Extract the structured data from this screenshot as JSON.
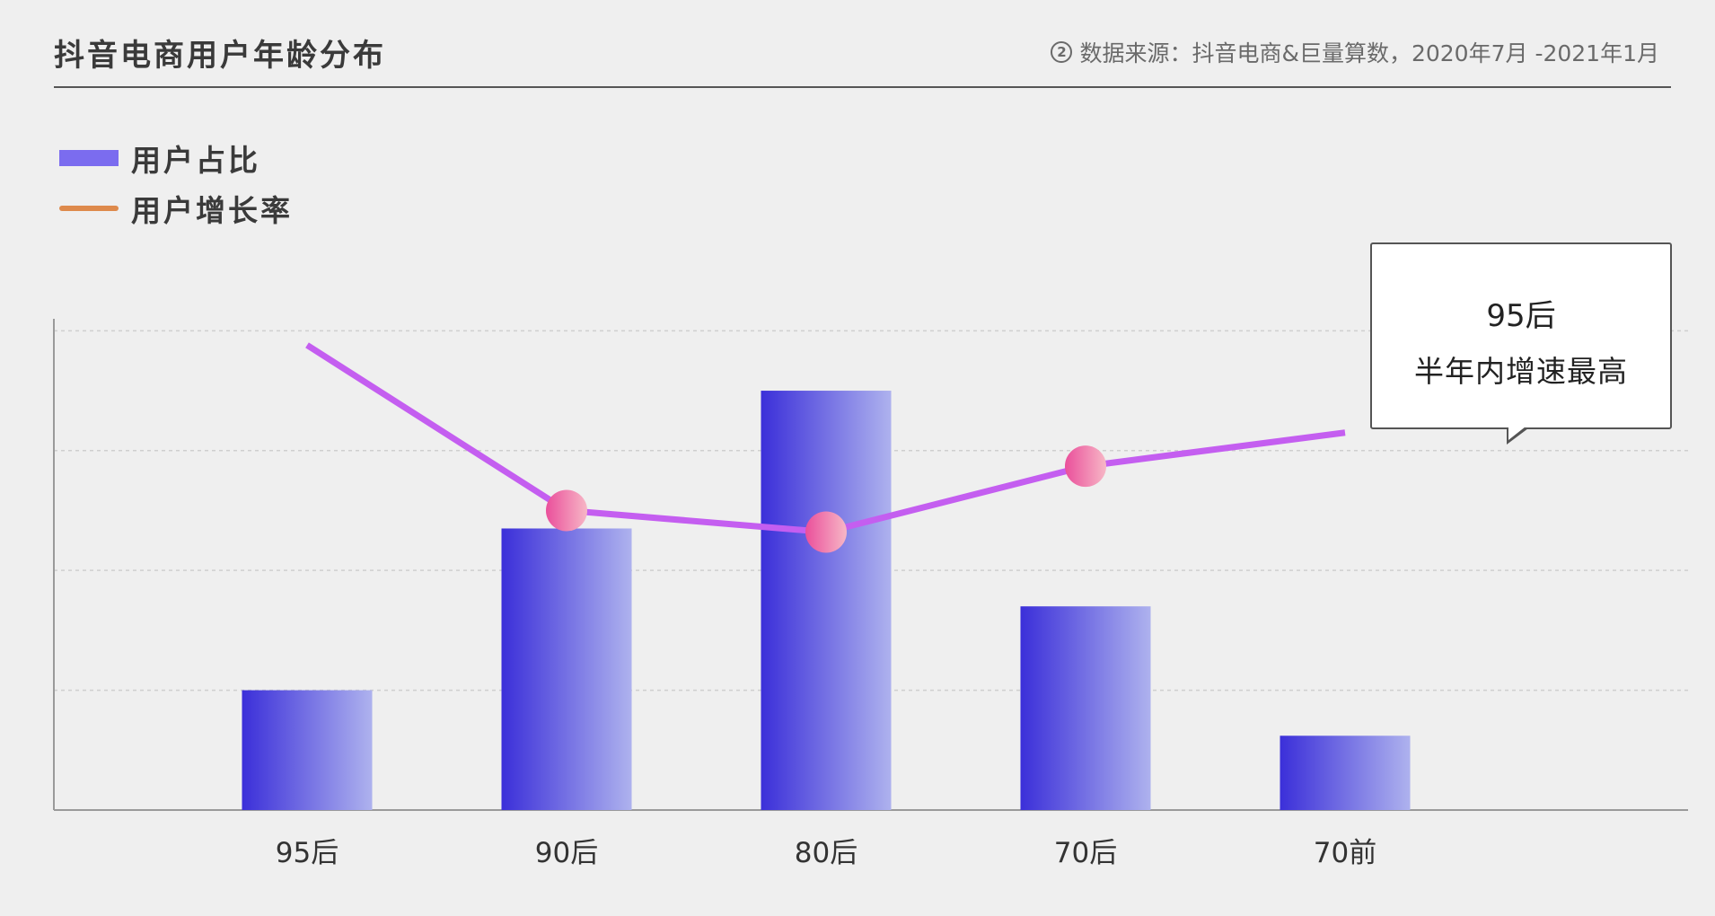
{
  "header": {
    "title": "抖音电商用户年龄分布",
    "source_icon": "info-circle-icon",
    "source_icon_glyph": "2",
    "source": "数据来源：抖音电商&巨量算数，2020年7月 -2021年1月"
  },
  "legend": {
    "items": [
      {
        "label": "用户占比",
        "kind": "bar",
        "color": "#7b6cef"
      },
      {
        "label": "用户增长率",
        "kind": "line",
        "color": "#de8a4c"
      }
    ]
  },
  "callout": {
    "line1": "95后",
    "line2": "半年内增速最高"
  },
  "colors": {
    "bar_gradient_start": "#3b2fd9",
    "bar_gradient_end": "#aeb2ee",
    "line": "#c45ef0",
    "marker_start": "#ea4f9b",
    "marker_end": "#f7b7c6",
    "grid": "#cfcfcf",
    "axis": "#9a9a9a"
  },
  "chart_data": {
    "type": "bar",
    "categories": [
      "95后",
      "90后",
      "80后",
      "70后",
      "70前"
    ],
    "series": [
      {
        "name": "用户占比",
        "type": "bar",
        "values": [
          1.0,
          2.35,
          3.5,
          1.7,
          0.62
        ]
      },
      {
        "name": "用户增长率",
        "type": "line",
        "values": [
          3.88,
          2.5,
          2.32,
          2.87,
          3.15
        ],
        "markers": [
          false,
          true,
          true,
          true,
          false
        ]
      }
    ],
    "ylim": [
      0,
      4.1
    ],
    "y_grid_values": [
      1,
      2,
      3,
      4
    ],
    "grid": true,
    "legend_position": "top-left",
    "ytick_labels_shown": false
  }
}
